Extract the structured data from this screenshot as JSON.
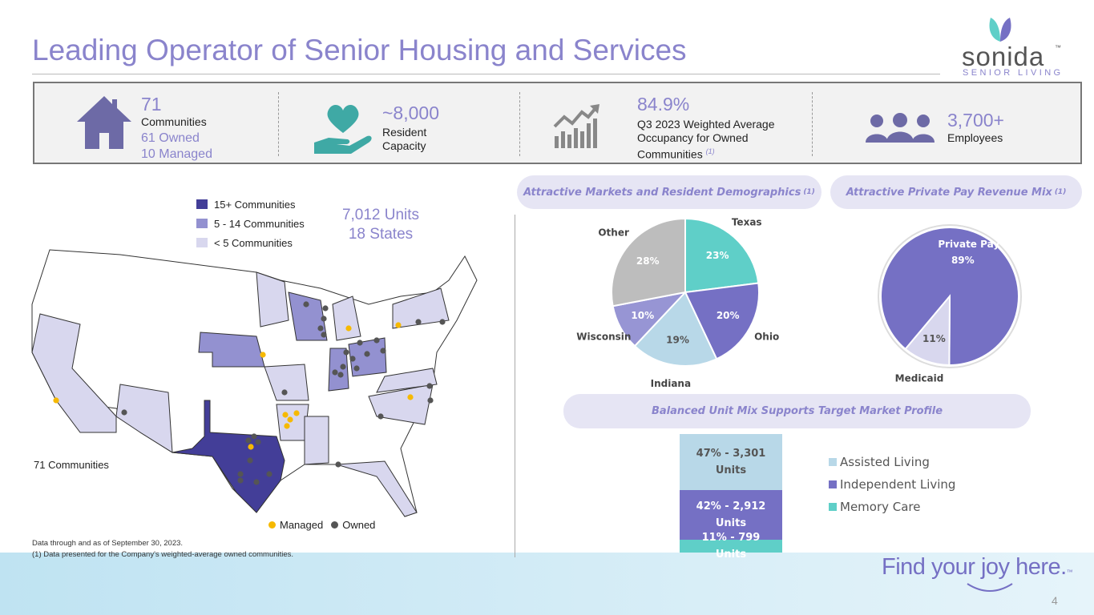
{
  "header": {
    "title": "Leading Operator of Senior Housing and Services",
    "logo": "sonida",
    "logo_tm": "™",
    "logo_sub": "SENIOR LIVING"
  },
  "stats": [
    {
      "value": "71",
      "label": "Communities",
      "details": [
        "61 Owned",
        "10 Managed"
      ]
    },
    {
      "value": "~8,000",
      "label": "Resident Capacity"
    },
    {
      "value": "84.9%",
      "label": "Q3 2023 Weighted Average Occupancy for Owned Communities",
      "note": "(1)"
    },
    {
      "value": "3,700+",
      "label": "Employees"
    }
  ],
  "map": {
    "legend": [
      {
        "name": "15+ Communities",
        "color": "#433e98"
      },
      {
        "name": "5 - 14 Communities",
        "color": "#9391d0"
      },
      {
        "name": "< 5 Communities",
        "color": "#d8d7ee"
      }
    ],
    "units": "7,012 Units",
    "states": "18 States",
    "count_label": "71 Communities",
    "dot_legend": [
      {
        "name": "Managed",
        "color": "#f6b900"
      },
      {
        "name": "Owned",
        "color": "#555555"
      }
    ]
  },
  "chart_data": [
    {
      "type": "pie",
      "title": "Attractive Markets and Resident Demographics",
      "title_note": "(1)",
      "categories": [
        "Texas",
        "Ohio",
        "Indiana",
        "Wisconsin",
        "Other"
      ],
      "values": [
        23,
        20,
        19,
        10,
        28
      ],
      "value_labels": [
        "23%",
        "20%",
        "19%",
        "10%",
        "28%"
      ],
      "colors": [
        "#5fcfc8",
        "#7570c4",
        "#b8d8e8",
        "#9795d4",
        "#bdbdbd"
      ]
    },
    {
      "type": "pie",
      "title": "Attractive Private Pay Revenue Mix",
      "title_note": "(1)",
      "categories": [
        "Private Pay",
        "Medicaid"
      ],
      "values": [
        89,
        11
      ],
      "value_labels": [
        "89%",
        "11%"
      ],
      "colors": [
        "#7570c4",
        "#d8d7ee"
      ]
    },
    {
      "type": "stacked_bar",
      "title": "Balanced Unit Mix Supports Target Market Profile",
      "series": [
        {
          "name": "Assisted Living",
          "color": "#b8d8e8",
          "values": [
            47
          ],
          "value_labels": [
            "47% - 3,301 Units"
          ]
        },
        {
          "name": "Independent Living",
          "color": "#7570c4",
          "values": [
            42
          ],
          "value_labels": [
            "42% - 2,912 Units"
          ]
        },
        {
          "name": "Memory Care",
          "color": "#5fcfc8",
          "values": [
            11
          ],
          "value_labels": [
            "11% - 799 Units"
          ]
        }
      ]
    }
  ],
  "footnotes": [
    "Data through and as of September 30, 2023.",
    "(1) Data presented for the Company's weighted-average owned communities."
  ],
  "tagline": "Find your joy here.",
  "tagline_tm": "™",
  "page_number": "4"
}
